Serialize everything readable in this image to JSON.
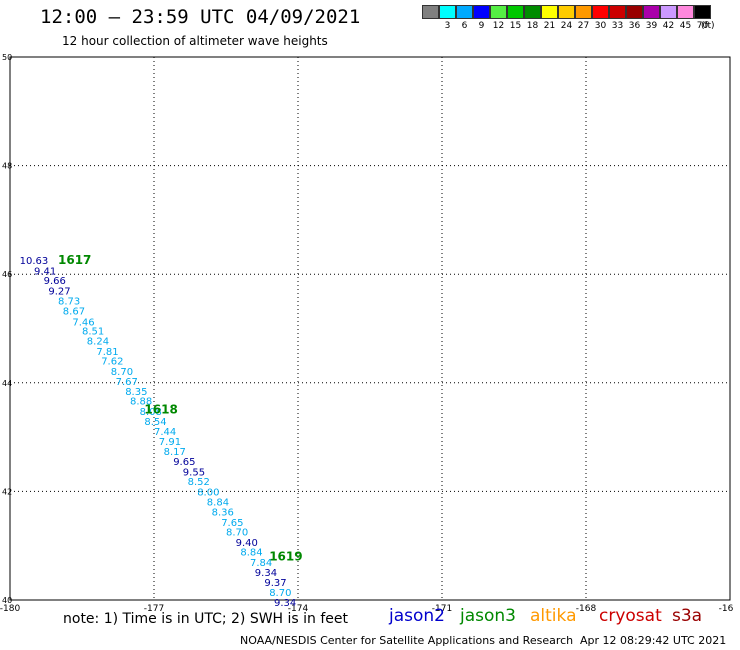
{
  "header": {
    "title": "12:00 – 23:59 UTC 04/09/2021",
    "subtitle": "12 hour collection of altimeter wave heights"
  },
  "legend": {
    "unit_label": "(ft)",
    "items": [
      {
        "label": "",
        "color": "#808080"
      },
      {
        "label": "3",
        "color": "#00ffff"
      },
      {
        "label": "6",
        "color": "#00aaff"
      },
      {
        "label": "9",
        "color": "#0000ff"
      },
      {
        "label": "12",
        "color": "#55ee44"
      },
      {
        "label": "15",
        "color": "#00c800"
      },
      {
        "label": "18",
        "color": "#008c00"
      },
      {
        "label": "21",
        "color": "#ffff00"
      },
      {
        "label": "24",
        "color": "#ffcc00"
      },
      {
        "label": "27",
        "color": "#ff9900"
      },
      {
        "label": "30",
        "color": "#ff0000"
      },
      {
        "label": "33",
        "color": "#cc0000"
      },
      {
        "label": "36",
        "color": "#990000"
      },
      {
        "label": "39",
        "color": "#aa00aa"
      },
      {
        "label": "42",
        "color": "#cc99ff"
      },
      {
        "label": "45",
        "color": "#ff88dd"
      },
      {
        "label": "70",
        "color": "#000000"
      }
    ]
  },
  "chart_data": {
    "type": "scatter",
    "title": "12:00 – 23:59 UTC 04/09/2021",
    "subtitle": "12 hour collection of altimeter wave heights",
    "xlim": [
      -180,
      -165
    ],
    "ylim": [
      40,
      50
    ],
    "x_ticks": [
      "-180",
      "-177",
      "-174",
      "-171",
      "-168",
      "-16"
    ],
    "y_ticks": [
      "50",
      "48",
      "46",
      "44",
      "42",
      "40"
    ],
    "grid": true,
    "colors": {
      "dark": "#000099",
      "light": "#00aaee",
      "pass": "#008800"
    },
    "points": [
      {
        "lon": -179.8,
        "lat": 46.26,
        "text": "10.63",
        "tone": "dark"
      },
      {
        "lon": -179.5,
        "lat": 46.07,
        "text": "9.41",
        "tone": "dark"
      },
      {
        "lon": -179.3,
        "lat": 45.89,
        "text": "9.66",
        "tone": "dark"
      },
      {
        "lon": -179.2,
        "lat": 45.7,
        "text": "9.27",
        "tone": "dark"
      },
      {
        "lon": -179.0,
        "lat": 45.52,
        "text": "8.73",
        "tone": "light"
      },
      {
        "lon": -178.9,
        "lat": 45.33,
        "text": "8.67",
        "tone": "light"
      },
      {
        "lon": -178.7,
        "lat": 45.13,
        "text": "7.46",
        "tone": "light"
      },
      {
        "lon": -178.5,
        "lat": 44.96,
        "text": "8.51",
        "tone": "light"
      },
      {
        "lon": -178.4,
        "lat": 44.78,
        "text": "8.24",
        "tone": "light"
      },
      {
        "lon": -178.2,
        "lat": 44.59,
        "text": "7.81",
        "tone": "light"
      },
      {
        "lon": -178.1,
        "lat": 44.41,
        "text": "7.62",
        "tone": "light"
      },
      {
        "lon": -177.9,
        "lat": 44.22,
        "text": "8.70",
        "tone": "light"
      },
      {
        "lon": -177.8,
        "lat": 44.03,
        "text": "7.67",
        "tone": "light"
      },
      {
        "lon": -177.6,
        "lat": 43.85,
        "text": "8.35",
        "tone": "light"
      },
      {
        "lon": -177.5,
        "lat": 43.67,
        "text": "8.88",
        "tone": "light"
      },
      {
        "lon": -177.3,
        "lat": 43.48,
        "text": "8.08",
        "tone": "light"
      },
      {
        "lon": -177.2,
        "lat": 43.3,
        "text": "8.54",
        "tone": "light"
      },
      {
        "lon": -177.0,
        "lat": 43.11,
        "text": "7.44",
        "tone": "light"
      },
      {
        "lon": -176.9,
        "lat": 42.93,
        "text": "7.91",
        "tone": "light"
      },
      {
        "lon": -176.8,
        "lat": 42.74,
        "text": "8.17",
        "tone": "light"
      },
      {
        "lon": -176.6,
        "lat": 42.56,
        "text": "9.65",
        "tone": "dark"
      },
      {
        "lon": -176.4,
        "lat": 42.37,
        "text": "9.55",
        "tone": "dark"
      },
      {
        "lon": -176.3,
        "lat": 42.19,
        "text": "8.52",
        "tone": "light"
      },
      {
        "lon": -176.1,
        "lat": 42.0,
        "text": "8.00",
        "tone": "light"
      },
      {
        "lon": -175.9,
        "lat": 41.81,
        "text": "8.84",
        "tone": "light"
      },
      {
        "lon": -175.8,
        "lat": 41.63,
        "text": "8.36",
        "tone": "light"
      },
      {
        "lon": -175.6,
        "lat": 41.44,
        "text": "7.65",
        "tone": "light"
      },
      {
        "lon": -175.5,
        "lat": 41.26,
        "text": "8.70",
        "tone": "light"
      },
      {
        "lon": -175.3,
        "lat": 41.07,
        "text": "9.40",
        "tone": "dark"
      },
      {
        "lon": -175.2,
        "lat": 40.89,
        "text": "8.84",
        "tone": "light"
      },
      {
        "lon": -175.0,
        "lat": 40.7,
        "text": "7.84",
        "tone": "light"
      },
      {
        "lon": -174.9,
        "lat": 40.52,
        "text": "9.34",
        "tone": "dark"
      },
      {
        "lon": -174.7,
        "lat": 40.33,
        "text": "9.37",
        "tone": "dark"
      },
      {
        "lon": -174.6,
        "lat": 40.15,
        "text": "8.70",
        "tone": "light"
      },
      {
        "lon": -174.5,
        "lat": 39.96,
        "text": "9.34",
        "tone": "dark"
      }
    ],
    "pass_labels": [
      {
        "lon": -179.0,
        "lat": 46.28,
        "text": "1617"
      },
      {
        "lon": -177.2,
        "lat": 43.53,
        "text": "1618"
      },
      {
        "lon": -174.6,
        "lat": 40.82,
        "text": "1619"
      }
    ]
  },
  "note": "note: 1) Time is in UTC; 2) SWH is in feet",
  "satellites": [
    {
      "name": "jason2",
      "color": "#0000cc"
    },
    {
      "name": "jason3",
      "color": "#008800"
    },
    {
      "name": "altika",
      "color": "#ff9900"
    },
    {
      "name": "cryosat",
      "color": "#cc0000"
    },
    {
      "name": "s3a",
      "color": "#990000"
    }
  ],
  "footer": {
    "center": "NOAA/NESDIS Center for Satellite Applications and Research",
    "timestamp": "Apr 12 08:29:42 UTC 2021"
  }
}
